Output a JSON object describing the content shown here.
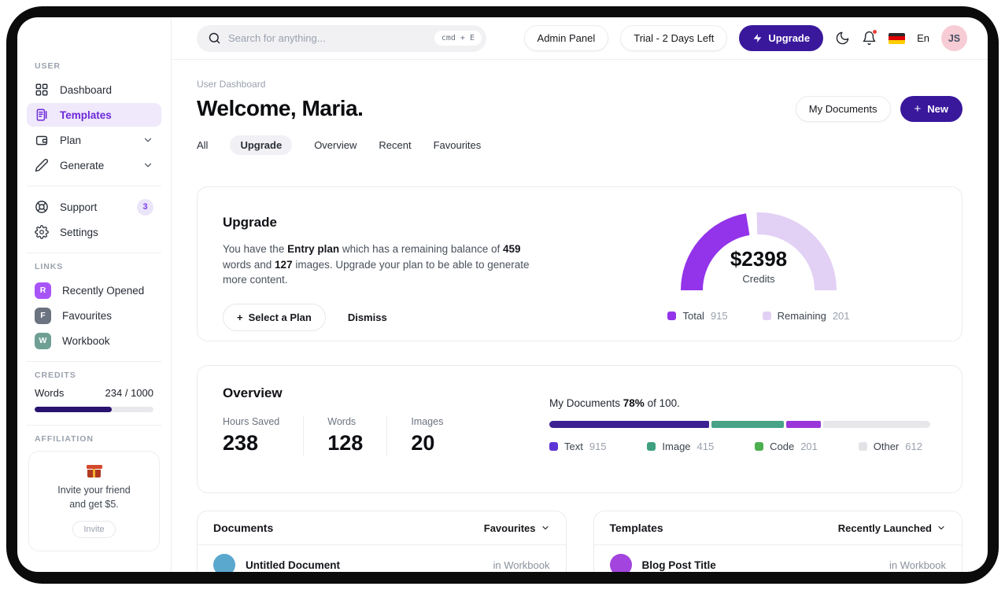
{
  "app": {
    "frame_color": "#0b0b0c",
    "accent_color": "#39189c",
    "active_nav_color": "#6d28d9"
  },
  "topbar": {
    "search": {
      "placeholder": "Search for anything...",
      "shortcut": "cmd + E"
    },
    "admin_panel_label": "Admin Panel",
    "trial_label": "Trial - 2 Days Left",
    "upgrade_label": "Upgrade",
    "language_label": "En",
    "avatar_initials": "JS"
  },
  "sidebar": {
    "user_section_label": "USER",
    "nav": [
      {
        "label": "Dashboard"
      },
      {
        "label": "Templates",
        "active": true
      },
      {
        "label": "Plan",
        "expandable": true
      },
      {
        "label": "Generate",
        "expandable": true
      }
    ],
    "secondary_nav": [
      {
        "label": "Support",
        "badge": "3"
      },
      {
        "label": "Settings"
      }
    ],
    "links_section_label": "LINKS",
    "links": [
      {
        "initial": "R",
        "label": "Recently Opened",
        "color": "#a855f7"
      },
      {
        "initial": "F",
        "label": "Favourites",
        "color": "#6b7280"
      },
      {
        "initial": "W",
        "label": "Workbook",
        "color": "#6f9f94"
      }
    ],
    "credits_section_label": "CREDITS",
    "credits": {
      "label": "Words",
      "value": "234 / 1000",
      "fill_width": "65%",
      "bar_color": "#2a1370"
    },
    "affiliation_section_label": "AFFILIATION",
    "affiliation": {
      "line1": "Invite your friend",
      "line2": "and get $5.",
      "button_label": "Invite"
    }
  },
  "header": {
    "breadcrumb": "User Dashboard",
    "title": "Welcome, Maria.",
    "my_documents_label": "My Documents",
    "new_label": "New",
    "tabs": [
      {
        "label": "All"
      },
      {
        "label": "Upgrade",
        "active": true
      },
      {
        "label": "Overview"
      },
      {
        "label": "Recent"
      },
      {
        "label": "Favourites"
      }
    ]
  },
  "upgrade_card": {
    "title": "Upgrade",
    "body": {
      "pre": "You have the ",
      "plan_bold": "Entry plan",
      "mid1": " which has a remaining balance of ",
      "words_bold": "459",
      "mid2": " words and ",
      "images_bold": "127",
      "post": " images. Upgrade your plan to be able to generate more content."
    },
    "select_plan_label": "Select a Plan",
    "dismiss_label": "Dismiss",
    "gauge": {
      "center_value": "$2398",
      "center_label": "Credits",
      "legend": [
        {
          "label": "Total",
          "value": "915",
          "color": "#9333ea"
        },
        {
          "label": "Remaining",
          "value": "201",
          "color": "#e2d0f5"
        }
      ]
    }
  },
  "overview_card": {
    "title": "Overview",
    "stats": [
      {
        "label": "Hours Saved",
        "value": "238"
      },
      {
        "label": "Words",
        "value": "128"
      },
      {
        "label": "Images",
        "value": "20"
      }
    ],
    "progress_line": {
      "pre": "My Documents ",
      "percent_bold": "78%",
      "post": " of 100."
    },
    "legend": [
      {
        "label": "Text",
        "value": "915",
        "color": "#5c35d6"
      },
      {
        "label": "Image",
        "value": "415",
        "color": "#3fa080"
      },
      {
        "label": "Code",
        "value": "201",
        "color": "#4caf50"
      },
      {
        "label": "Other",
        "value": "612",
        "color": "#e3e3e7"
      }
    ]
  },
  "documents_card": {
    "title": "Documents",
    "filter_label": "Favourites",
    "rows": [
      {
        "title": "Untitled Document",
        "location": "in Workbook",
        "avatar_color": "#5ba8ce"
      }
    ]
  },
  "templates_card": {
    "title": "Templates",
    "filter_label": "Recently Launched",
    "rows": [
      {
        "title": "Blog Post Title",
        "location": "in Workbook",
        "avatar_color": "#a244dd"
      }
    ]
  },
  "chart_data": [
    {
      "type": "pie",
      "variant": "half-donut-gauge",
      "title": "Credits",
      "center_value": "$2398",
      "center_label": "Credits",
      "series": [
        {
          "name": "Total",
          "value": 915,
          "color": "#9333ea"
        },
        {
          "name": "Remaining",
          "value": 201,
          "color": "#e2d0f5"
        }
      ],
      "visual_fraction_total": 0.47,
      "legend_position": "bottom"
    },
    {
      "type": "bar",
      "variant": "stacked-horizontal-progress",
      "title": "My Documents 78% of 100.",
      "categories": [
        "Text",
        "Image",
        "Code",
        "Other"
      ],
      "values": [
        915,
        415,
        201,
        612
      ],
      "colors": [
        "#3b2191",
        "#48a387",
        "#9a36d9",
        "#e7e7ea"
      ],
      "legend_position": "bottom"
    }
  ]
}
